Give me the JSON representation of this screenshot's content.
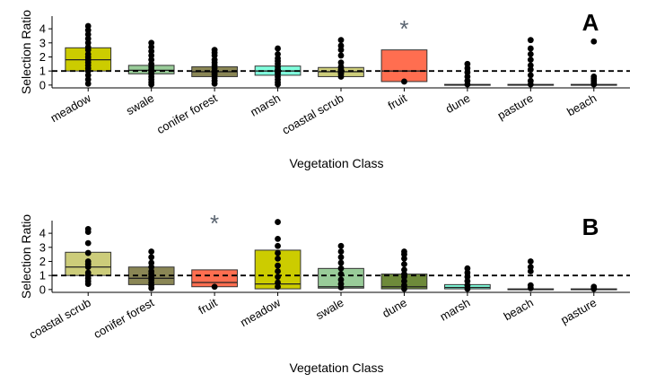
{
  "chart_data": [
    {
      "type": "box",
      "panel_label": "A",
      "xlabel": "Vegetation Class",
      "ylabel": "Selection Ratio",
      "ylim": [
        -0.2,
        4.9
      ],
      "yticks": [
        0,
        1,
        2,
        3,
        4
      ],
      "reference_line": 1,
      "categories": [
        "meadow",
        "swale",
        "conifer forest",
        "marsh",
        "coastal scrub",
        "fruit",
        "dune",
        "pasture",
        "beach"
      ],
      "colors": [
        "#cccc00",
        "#99cc99",
        "#8a8655",
        "#80ffdd",
        "#cccc7a",
        "#ff6e50",
        "#8fd9b5",
        "#d4c98a",
        "#6e8a3a"
      ],
      "boxes": [
        {
          "q1": 1.0,
          "median": 1.8,
          "q3": 2.65
        },
        {
          "q1": 0.8,
          "median": 1.05,
          "q3": 1.4
        },
        {
          "q1": 0.6,
          "median": 0.95,
          "q3": 1.3
        },
        {
          "q1": 0.7,
          "median": 1.0,
          "q3": 1.35
        },
        {
          "q1": 0.6,
          "median": 0.95,
          "q3": 1.25
        },
        {
          "q1": 0.25,
          "median": 1.0,
          "q3": 2.5
        },
        {
          "q1": 0.0,
          "median": 0.0,
          "q3": 0.05
        },
        {
          "q1": 0.0,
          "median": 0.0,
          "q3": 0.05
        },
        {
          "q1": 0.0,
          "median": 0.0,
          "q3": 0.05
        }
      ],
      "points": [
        [
          4.2,
          3.9,
          3.6,
          3.3,
          3.0,
          2.7,
          2.5,
          2.2,
          2.0,
          1.8,
          1.6,
          1.4,
          1.2,
          1.0,
          0.7,
          0.4,
          0.1
        ],
        [
          3.0,
          2.7,
          2.4,
          2.1,
          1.8,
          1.5,
          1.3,
          1.1,
          1.0,
          0.9,
          0.8,
          0.6,
          0.4,
          0.2,
          0.05
        ],
        [
          2.5,
          2.3,
          2.1,
          1.8,
          1.6,
          1.4,
          1.2,
          1.0,
          0.9,
          0.8,
          0.7,
          0.5,
          0.3,
          0.1
        ],
        [
          2.6,
          2.2,
          1.9,
          1.7,
          1.5,
          1.3,
          1.1,
          1.0,
          0.9,
          0.8,
          0.6,
          0.4,
          0.2,
          0.05
        ],
        [
          3.2,
          2.8,
          2.5,
          2.1,
          1.6,
          1.3,
          1.1,
          1.0,
          0.9,
          0.8,
          0.6
        ],
        [
          0.25
        ],
        [
          1.5,
          1.2,
          0.9,
          0.6,
          0.3,
          0.05
        ],
        [
          3.2,
          2.6,
          2.2,
          1.8,
          1.4,
          1.1,
          0.7,
          0.3,
          0.05
        ],
        [
          3.1,
          0.6,
          0.45,
          0.3,
          0.15,
          0.05
        ]
      ],
      "outlier_markers": [
        {
          "category": "fruit",
          "y": 4.2,
          "symbol": "*"
        }
      ]
    },
    {
      "type": "box",
      "panel_label": "B",
      "xlabel": "Vegetation Class",
      "ylabel": "Selection Ratio",
      "ylim": [
        -0.2,
        4.9
      ],
      "yticks": [
        0,
        1,
        2,
        3,
        4
      ],
      "reference_line": 1,
      "categories": [
        "coastal scrub",
        "conifer forest",
        "fruit",
        "meadow",
        "swale",
        "dune",
        "marsh",
        "beach",
        "pasture"
      ],
      "colors": [
        "#cccc7a",
        "#8a8655",
        "#ff6e50",
        "#cccc00",
        "#99cc99",
        "#6e8a3a",
        "#80ffdd",
        "#6e8a3a",
        "#d4c98a"
      ],
      "boxes": [
        {
          "q1": 1.0,
          "median": 1.6,
          "q3": 2.65
        },
        {
          "q1": 0.35,
          "median": 0.8,
          "q3": 1.6
        },
        {
          "q1": 0.2,
          "median": 0.5,
          "q3": 1.4
        },
        {
          "q1": 0.05,
          "median": 0.4,
          "q3": 2.8
        },
        {
          "q1": 0.1,
          "median": 0.2,
          "q3": 1.5
        },
        {
          "q1": 0.05,
          "median": 0.2,
          "q3": 1.1
        },
        {
          "q1": 0.05,
          "median": 0.15,
          "q3": 0.35
        },
        {
          "q1": 0.0,
          "median": 0.0,
          "q3": 0.05
        },
        {
          "q1": 0.0,
          "median": 0.0,
          "q3": 0.05
        }
      ],
      "points": [
        [
          4.3,
          4.1,
          3.3,
          2.6,
          2.0,
          1.8,
          1.6,
          1.2,
          1.0,
          0.8,
          0.6,
          0.4
        ],
        [
          2.7,
          2.3,
          1.9,
          1.6,
          1.3,
          1.1,
          0.9,
          0.7,
          0.5,
          0.3,
          0.1
        ],
        [
          0.2
        ],
        [
          4.8,
          3.6,
          3.1,
          2.6,
          2.2,
          1.7,
          1.3,
          0.9,
          0.5,
          0.2
        ],
        [
          3.1,
          2.7,
          2.3,
          1.9,
          1.5,
          1.1,
          0.7,
          0.4,
          0.15
        ],
        [
          2.7,
          2.5,
          2.2,
          1.8,
          1.4,
          1.1,
          0.9,
          0.6,
          0.3,
          0.05
        ],
        [
          1.5,
          1.2,
          0.9,
          0.6,
          0.3,
          0.05
        ],
        [
          2.0,
          1.6,
          1.3,
          0.3,
          0.1
        ],
        [
          0.2,
          0.1,
          0.05
        ]
      ],
      "outlier_markers": [
        {
          "category": "fruit",
          "y": 4.9,
          "symbol": "*"
        }
      ]
    }
  ]
}
